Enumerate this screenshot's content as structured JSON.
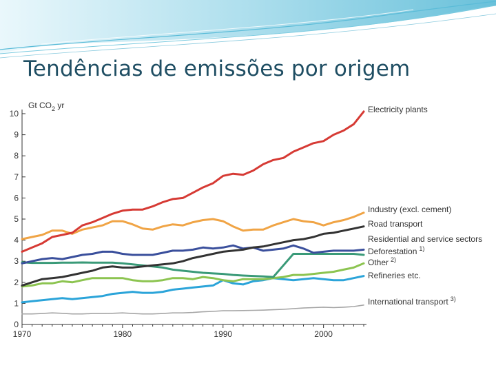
{
  "slide": {
    "title": "Tendências de emissões por origem"
  },
  "chart_data": {
    "type": "line",
    "title": "",
    "ylabel": "Gt CO",
    "ylabel_sub": "2",
    "ylabel_suffix": " yr",
    "xlabel": "",
    "xlim": [
      1970,
      2004
    ],
    "ylim": [
      0,
      10
    ],
    "xticks": [
      1970,
      1980,
      1990,
      2000
    ],
    "yticks": [
      0,
      1,
      2,
      3,
      4,
      5,
      6,
      7,
      8,
      9,
      10
    ],
    "grid": false,
    "legend": "right, at line ends",
    "x": [
      1970,
      1971,
      1972,
      1973,
      1974,
      1975,
      1976,
      1977,
      1978,
      1979,
      1980,
      1981,
      1982,
      1983,
      1984,
      1985,
      1986,
      1987,
      1988,
      1989,
      1990,
      1991,
      1992,
      1993,
      1994,
      1995,
      1996,
      1997,
      1998,
      1999,
      2000,
      2001,
      2002,
      2003,
      2004
    ],
    "series": [
      {
        "name": "Electricity plants",
        "note": "",
        "color": "#d63a34",
        "values": [
          3.45,
          3.65,
          3.85,
          4.15,
          4.25,
          4.35,
          4.7,
          4.85,
          5.05,
          5.25,
          5.4,
          5.45,
          5.45,
          5.6,
          5.8,
          5.95,
          6.0,
          6.25,
          6.5,
          6.7,
          7.05,
          7.15,
          7.1,
          7.3,
          7.6,
          7.8,
          7.9,
          8.2,
          8.4,
          8.6,
          8.7,
          9.0,
          9.2,
          9.5,
          10.1
        ]
      },
      {
        "name": "Industry (excl. cement)",
        "note": "",
        "color": "#f0a445",
        "values": [
          4.05,
          4.15,
          4.25,
          4.45,
          4.45,
          4.3,
          4.5,
          4.6,
          4.7,
          4.9,
          4.9,
          4.75,
          4.55,
          4.5,
          4.65,
          4.75,
          4.7,
          4.85,
          4.95,
          5.0,
          4.9,
          4.65,
          4.45,
          4.5,
          4.5,
          4.7,
          4.85,
          5.0,
          4.9,
          4.85,
          4.7,
          4.85,
          4.95,
          5.1,
          5.3
        ]
      },
      {
        "name": "Road transport",
        "note": "",
        "color": "#333333",
        "values": [
          1.85,
          2.0,
          2.15,
          2.2,
          2.25,
          2.35,
          2.45,
          2.55,
          2.7,
          2.75,
          2.7,
          2.7,
          2.75,
          2.8,
          2.85,
          2.9,
          3.0,
          3.15,
          3.25,
          3.35,
          3.45,
          3.5,
          3.55,
          3.65,
          3.7,
          3.8,
          3.9,
          4.0,
          4.05,
          4.15,
          4.3,
          4.35,
          4.45,
          4.55,
          4.65
        ]
      },
      {
        "name": "Residential and service sectors",
        "note": "",
        "color": "#3a4f9c",
        "values": [
          2.9,
          3.0,
          3.1,
          3.15,
          3.1,
          3.2,
          3.3,
          3.35,
          3.45,
          3.45,
          3.35,
          3.3,
          3.3,
          3.3,
          3.4,
          3.5,
          3.5,
          3.55,
          3.65,
          3.6,
          3.65,
          3.75,
          3.6,
          3.65,
          3.5,
          3.55,
          3.6,
          3.75,
          3.6,
          3.4,
          3.45,
          3.5,
          3.5,
          3.5,
          3.55
        ]
      },
      {
        "name": "Deforestation",
        "note": "1)",
        "color": "#3a9a78",
        "values": [
          2.95,
          2.92,
          2.92,
          2.92,
          2.93,
          2.93,
          2.94,
          2.93,
          2.93,
          2.93,
          2.9,
          2.85,
          2.8,
          2.75,
          2.7,
          2.6,
          2.55,
          2.5,
          2.45,
          2.42,
          2.4,
          2.35,
          2.32,
          2.3,
          2.28,
          2.25,
          2.8,
          3.35,
          3.35,
          3.35,
          3.35,
          3.35,
          3.35,
          3.35,
          3.3
        ]
      },
      {
        "name": "Other",
        "note": "2)",
        "color": "#8cc450",
        "values": [
          1.8,
          1.85,
          1.95,
          1.95,
          2.05,
          2.0,
          2.1,
          2.2,
          2.2,
          2.2,
          2.2,
          2.1,
          2.05,
          2.05,
          2.1,
          2.2,
          2.2,
          2.15,
          2.25,
          2.2,
          2.1,
          2.05,
          2.15,
          2.15,
          2.15,
          2.2,
          2.25,
          2.35,
          2.35,
          2.4,
          2.45,
          2.5,
          2.6,
          2.7,
          2.9
        ]
      },
      {
        "name": "Refineries etc.",
        "note": "",
        "color": "#2ba4d9",
        "values": [
          1.05,
          1.1,
          1.15,
          1.2,
          1.25,
          1.2,
          1.25,
          1.3,
          1.35,
          1.45,
          1.5,
          1.55,
          1.5,
          1.5,
          1.55,
          1.65,
          1.7,
          1.75,
          1.8,
          1.85,
          2.1,
          1.95,
          1.9,
          2.05,
          2.1,
          2.2,
          2.15,
          2.1,
          2.15,
          2.2,
          2.15,
          2.1,
          2.1,
          2.2,
          2.3
        ]
      },
      {
        "name": "International transport",
        "note": "3)",
        "color": "#a6a6a6",
        "values": [
          0.5,
          0.5,
          0.52,
          0.55,
          0.53,
          0.5,
          0.5,
          0.52,
          0.52,
          0.53,
          0.55,
          0.52,
          0.5,
          0.5,
          0.52,
          0.55,
          0.55,
          0.57,
          0.6,
          0.62,
          0.65,
          0.65,
          0.66,
          0.67,
          0.68,
          0.7,
          0.72,
          0.75,
          0.78,
          0.8,
          0.82,
          0.8,
          0.82,
          0.85,
          0.92
        ]
      }
    ]
  },
  "colors": {
    "title": "#1f4e63",
    "axis": "#333333",
    "banner_main": "#6fc3dc",
    "banner_light": "#bfe6f1"
  }
}
